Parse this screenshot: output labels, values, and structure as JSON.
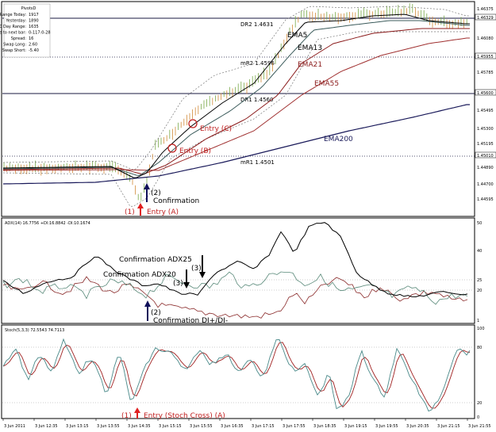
{
  "colors": {
    "price_candles_up": "#7aa84a",
    "price_candles_down": "#d28a3a",
    "ema5": "#000000",
    "ema13": "#3a5a5a",
    "ema21": "#8a1a1a",
    "ema55": "#a03030",
    "ema200": "#1a1a5a",
    "bands": "#777777",
    "pivot_line": "#1a1a40",
    "pivot_dotted": "#444444",
    "arrow_red": "#e02020",
    "arrow_blue": "#10105a",
    "adx_line": "#000000",
    "di_plus": "#5a8a7a",
    "di_minus": "#8a2a2a",
    "stoch_main": "#4a8a8a",
    "stoch_signal": "#a02020",
    "annot_red": "#c02020"
  },
  "pivots_panel": {
    "title": "PivotsD",
    "rows": [
      {
        "label": "Range Today:",
        "value": "1917"
      },
      {
        "label": "Yesterday:",
        "value": "1890"
      },
      {
        "label": "30 Day Range:",
        "value": "1635"
      },
      {
        "label": "Time to next bar:",
        "value": "0-117:0-28"
      },
      {
        "label": "Spread:",
        "value": "16"
      },
      {
        "label": "Swap Long:",
        "value": "2.60"
      },
      {
        "label": "Swap Short:",
        "value": "-5.40"
      }
    ]
  },
  "main_chart": {
    "price_axis": [
      "1.46375",
      "1.46329",
      "1.46080",
      "1.45955",
      "1.45785",
      "1.45600",
      "1.45495",
      "1.45300",
      "1.45195",
      "1.45010",
      "1.44890",
      "1.44700",
      "1.44595"
    ],
    "levels": [
      {
        "name": "DR2",
        "value": "1.4631",
        "style": "solid"
      },
      {
        "name": "mR2",
        "value": "1.4596",
        "style": "dotted"
      },
      {
        "name": "DR1",
        "value": "1.4560",
        "style": "solid"
      },
      {
        "name": "mR1",
        "value": "1.4501",
        "style": "dotted"
      }
    ],
    "ema_labels": [
      "EMA5",
      "EMA13",
      "EMA21",
      "EMA55",
      "EMA200"
    ],
    "annotations": {
      "entry_c": "Entry (C)",
      "entry_b": "Entry (B)",
      "entry_a": "Entry (A)",
      "entry_a_num": "(1)",
      "confirm_num": "(2)",
      "confirm": "Confirmation"
    }
  },
  "adx_panel": {
    "header": "ADX(14) 16.7756 +DI:16.8842 -DI:10.1674",
    "axis": [
      "50",
      "40",
      "25",
      "20",
      "1"
    ],
    "annotations": {
      "adx25": "Confirmation ADX25",
      "adx25_num": "(3)",
      "adx20": "Confirmation ADX20",
      "adx20_num": "(3)",
      "di_num": "(2)",
      "di": "Confirmation DI+/DI-"
    }
  },
  "stoch_panel": {
    "header": "Stoch(5,3,3) 72.5543 74.7113",
    "axis": [
      "100",
      "80",
      "20",
      "0"
    ],
    "annotations": {
      "num": "(1)",
      "entry": "Entry (Stoch Cross) (A)"
    }
  },
  "time_axis": [
    "3 Jun 2011",
    "3 Jun 12:35",
    "3 Jun 13:15",
    "3 Jun 13:55",
    "3 Jun 14:35",
    "3 Jun 15:15",
    "3 Jun 15:55",
    "3 Jun 16:35",
    "3 Jun 17:15",
    "3 Jun 17:55",
    "3 Jun 18:35",
    "3 Jun 19:15",
    "3 Jun 19:55",
    "3 Jun 20:35",
    "3 Jun 21:15",
    "3 Jun 21:55"
  ]
}
